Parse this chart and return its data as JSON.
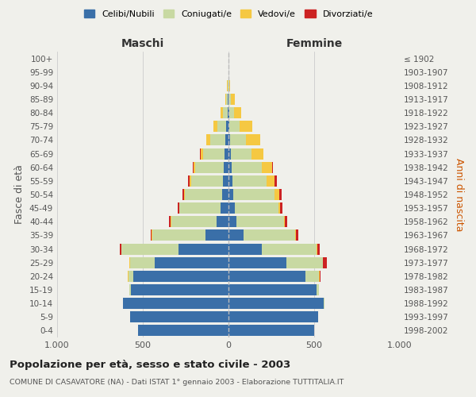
{
  "age_groups": [
    "0-4",
    "5-9",
    "10-14",
    "15-19",
    "20-24",
    "25-29",
    "30-34",
    "35-39",
    "40-44",
    "45-49",
    "50-54",
    "55-59",
    "60-64",
    "65-69",
    "70-74",
    "75-79",
    "80-84",
    "85-89",
    "90-94",
    "95-99",
    "100+"
  ],
  "anni_nascita": [
    "1998-2002",
    "1993-1997",
    "1988-1992",
    "1983-1987",
    "1978-1982",
    "1973-1977",
    "1968-1972",
    "1963-1967",
    "1958-1962",
    "1953-1957",
    "1948-1952",
    "1943-1947",
    "1938-1942",
    "1933-1937",
    "1928-1932",
    "1923-1927",
    "1918-1922",
    "1913-1917",
    "1908-1912",
    "1903-1907",
    "≤ 1902"
  ],
  "maschi_celibi": [
    530,
    575,
    615,
    570,
    555,
    430,
    290,
    135,
    70,
    45,
    38,
    32,
    28,
    22,
    18,
    12,
    6,
    3,
    2,
    1,
    0
  ],
  "maschi_coniugati": [
    0,
    0,
    2,
    8,
    30,
    145,
    335,
    310,
    265,
    240,
    215,
    185,
    165,
    125,
    90,
    55,
    28,
    10,
    4,
    1,
    0
  ],
  "maschi_vedovi": [
    0,
    0,
    0,
    0,
    2,
    2,
    2,
    2,
    2,
    3,
    5,
    8,
    10,
    15,
    20,
    22,
    12,
    6,
    2,
    0,
    0
  ],
  "maschi_divorziati": [
    0,
    0,
    0,
    0,
    2,
    3,
    5,
    5,
    8,
    8,
    10,
    10,
    5,
    3,
    2,
    1,
    0,
    0,
    0,
    0,
    0
  ],
  "femmine_celibi": [
    500,
    525,
    555,
    515,
    450,
    340,
    195,
    90,
    48,
    35,
    28,
    22,
    18,
    12,
    8,
    5,
    3,
    2,
    1,
    0,
    0
  ],
  "femmine_coniugati": [
    0,
    0,
    3,
    12,
    80,
    210,
    320,
    300,
    275,
    255,
    240,
    200,
    175,
    120,
    95,
    60,
    28,
    12,
    4,
    1,
    0
  ],
  "femmine_vedovi": [
    0,
    0,
    0,
    0,
    2,
    2,
    3,
    5,
    8,
    12,
    28,
    45,
    60,
    70,
    80,
    75,
    42,
    22,
    6,
    1,
    0
  ],
  "femmine_divorziati": [
    0,
    0,
    0,
    2,
    5,
    20,
    15,
    12,
    12,
    12,
    15,
    15,
    5,
    3,
    2,
    1,
    0,
    0,
    0,
    0,
    0
  ],
  "colors": {
    "celibi": "#3a6fa8",
    "coniugati": "#c8d9a2",
    "vedovi": "#f5c842",
    "divorziati": "#cc2222"
  },
  "xlim": 1000,
  "title": "Popolazione per età, sesso e stato civile - 2003",
  "subtitle": "COMUNE DI CASAVATORE (NA) - Dati ISTAT 1° gennaio 2003 - Elaborazione TUTTITALIA.IT",
  "xlabel_left": "Maschi",
  "xlabel_right": "Femmine",
  "ylabel_left": "Fasce di età",
  "ylabel_right": "Anni di nascita",
  "background": "#f0f0eb"
}
